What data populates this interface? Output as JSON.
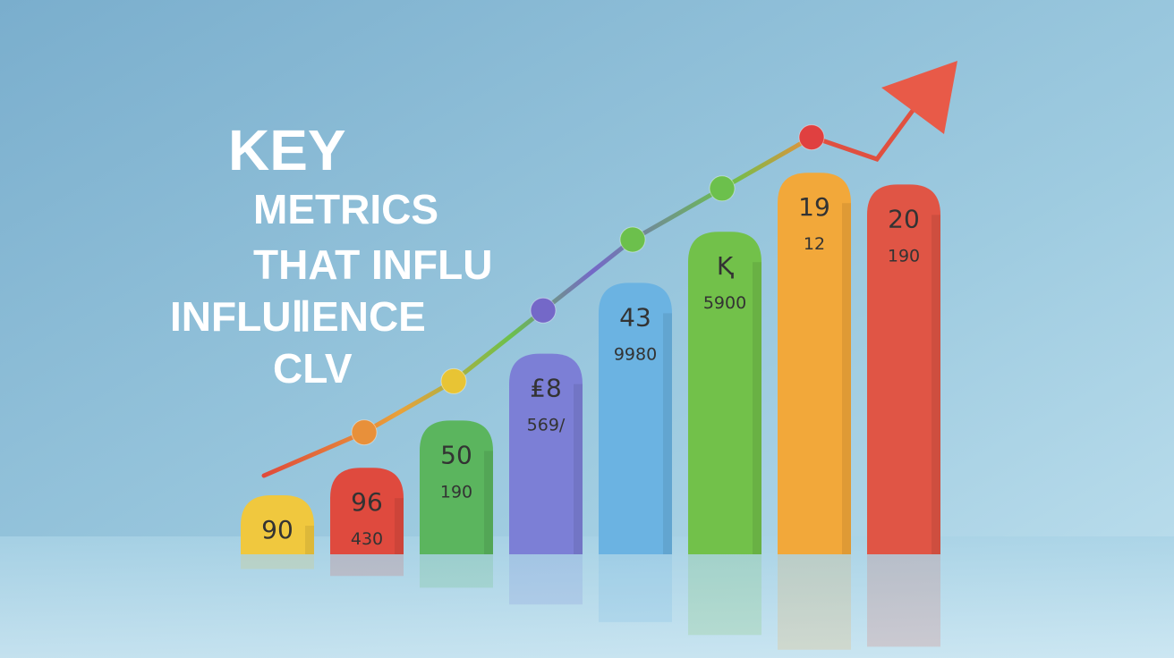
{
  "chart_data": {
    "type": "bar",
    "title": [
      "KEY",
      "METRICS",
      "THAT INFLU",
      "INFLUⅡENCE",
      "CLV"
    ],
    "categories": [
      null,
      null,
      null,
      null,
      null,
      null,
      null,
      null
    ],
    "values": [
      15,
      22,
      34,
      51,
      69,
      82,
      97,
      94
    ],
    "colors": [
      "#f0c83e",
      "#df4a3e",
      "#5bb55e",
      "#7c7fd6",
      "#6bb3e2",
      "#72c14a",
      "#f2a83a",
      "#e05545"
    ],
    "bar_labels": [
      [
        "90"
      ],
      [
        "96",
        "430"
      ],
      [
        "50",
        "190"
      ],
      [
        "₤8",
        "569/"
      ],
      [
        "43",
        "9980"
      ],
      [
        "Ⱪ",
        "5900"
      ],
      [
        "19",
        "12"
      ],
      [
        "20",
        "190"
      ]
    ],
    "ylim": [
      0,
      110
    ],
    "line": {
      "values": [
        20,
        31,
        44,
        62,
        80,
        93,
        106,
        null
      ],
      "marker_colors": [
        null,
        "#e8903a",
        "#e8c434",
        "#7468c8",
        "#6cc04c",
        "#6cc04c",
        "#e04040",
        null
      ]
    }
  }
}
